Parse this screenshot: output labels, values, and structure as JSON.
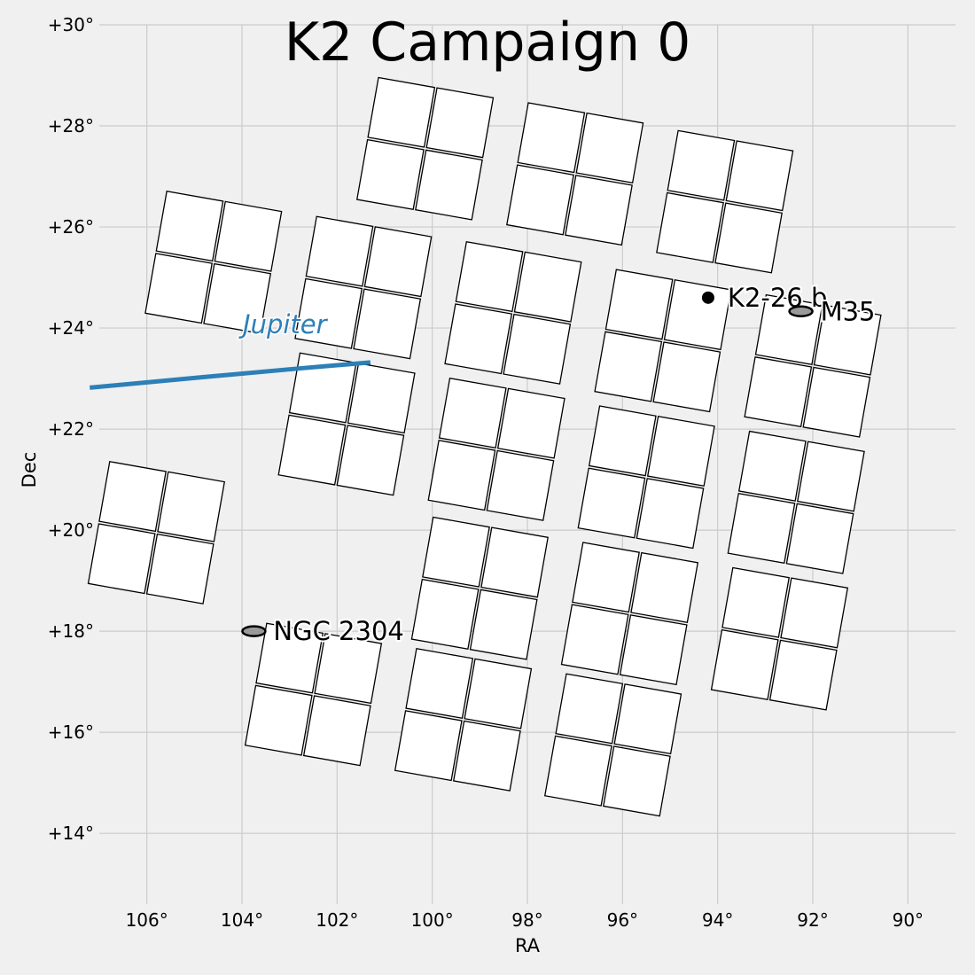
{
  "chart_data": {
    "type": "scatter",
    "title": "K2 Campaign 0",
    "xlabel": "RA",
    "ylabel": "Dec",
    "xlim": [
      107,
      89
    ],
    "ylim": [
      12.6,
      30.0
    ],
    "x_ticks": [
      106,
      104,
      102,
      100,
      98,
      96,
      94,
      92,
      90
    ],
    "x_tick_labels": [
      "106°",
      "104°",
      "102°",
      "100°",
      "98°",
      "96°",
      "94°",
      "92°",
      "90°"
    ],
    "y_ticks": [
      30,
      28,
      26,
      24,
      22,
      20,
      18,
      16,
      14
    ],
    "y_tick_labels": [
      "+30°",
      "+28°",
      "+26°",
      "+24°",
      "+22°",
      "+20°",
      "+18°",
      "+16°",
      "+14°"
    ],
    "grid": true,
    "camera_footprint": {
      "rotation_deg": -10,
      "ccd_size_deg": 1.2,
      "modules": [
        {
          "ra": 100.15,
          "dec": 27.55
        },
        {
          "ra": 97.0,
          "dec": 27.05
        },
        {
          "ra": 93.85,
          "dec": 26.5
        },
        {
          "ra": 104.6,
          "dec": 25.3
        },
        {
          "ra": 101.45,
          "dec": 24.8
        },
        {
          "ra": 98.3,
          "dec": 24.3
        },
        {
          "ra": 95.15,
          "dec": 23.75
        },
        {
          "ra": 92.0,
          "dec": 23.25
        },
        {
          "ra": 101.8,
          "dec": 22.1
        },
        {
          "ra": 98.65,
          "dec": 21.6
        },
        {
          "ra": 95.5,
          "dec": 21.05
        },
        {
          "ra": 92.35,
          "dec": 20.55
        },
        {
          "ra": 105.8,
          "dec": 19.95
        },
        {
          "ra": 99.0,
          "dec": 18.85
        },
        {
          "ra": 95.85,
          "dec": 18.35
        },
        {
          "ra": 92.7,
          "dec": 17.85
        },
        {
          "ra": 102.5,
          "dec": 16.75
        },
        {
          "ra": 99.35,
          "dec": 16.25
        },
        {
          "ra": 96.2,
          "dec": 15.75
        }
      ]
    },
    "jupiter_track": {
      "label": "Jupiter",
      "color": "#2d7fb8",
      "ra": [
        107.2,
        104.8,
        102.8,
        101.3
      ],
      "dec": [
        22.82,
        23.03,
        23.2,
        23.32
      ]
    },
    "objects": [
      {
        "name": "NGC 2304",
        "ra": 103.75,
        "dec": 18.0,
        "marker": "ellipse"
      },
      {
        "name": "K2-26 b",
        "ra": 94.2,
        "dec": 24.6,
        "marker": "dot"
      },
      {
        "name": "M35",
        "ra": 92.25,
        "dec": 24.33,
        "marker": "ellipse"
      }
    ]
  }
}
